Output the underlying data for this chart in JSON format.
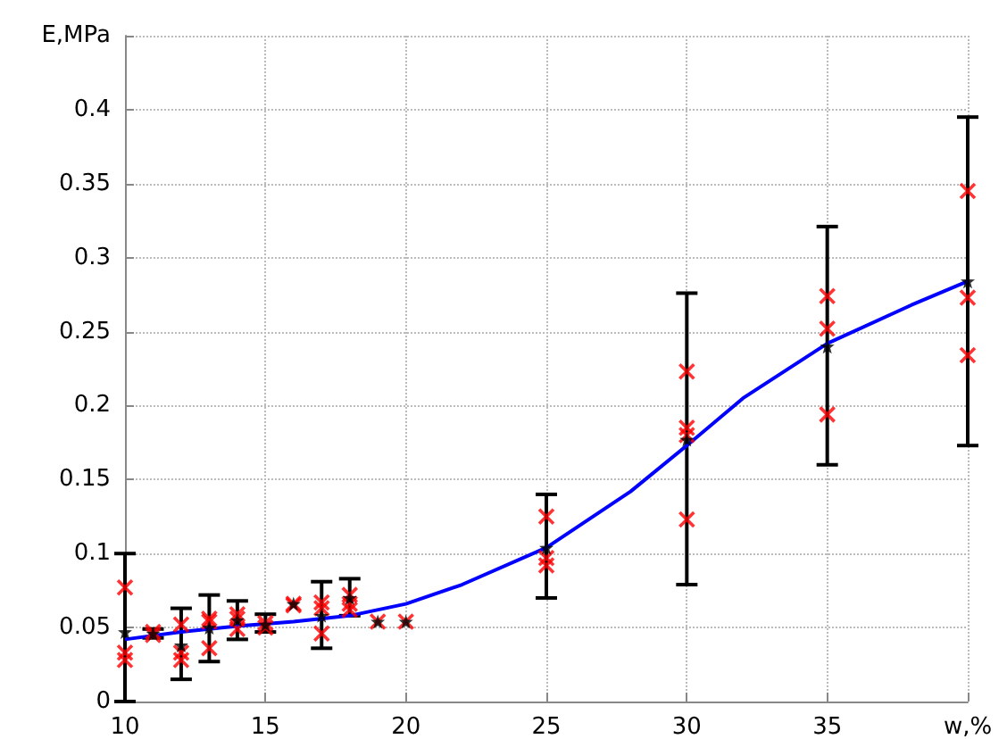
{
  "chart_data": {
    "type": "scatter",
    "xlim": [
      10,
      40
    ],
    "ylim": [
      0,
      0.45
    ],
    "xticks": [
      10,
      15,
      20,
      25,
      30,
      35,
      {
        "value": 40,
        "label": "w,%"
      }
    ],
    "yticks": [
      0,
      0.05,
      0.1,
      0.15,
      0.2,
      0.25,
      0.3,
      0.35,
      0.4,
      {
        "value": 0.45,
        "label": "E,MPa"
      }
    ],
    "grid": true,
    "series": [
      {
        "marker": "cross",
        "color": "#ff0000",
        "x": [
          10,
          10,
          10,
          11,
          11,
          12,
          12,
          12,
          13,
          13,
          13,
          14,
          14,
          14,
          15,
          15,
          16,
          16,
          17,
          17,
          17,
          18,
          18,
          18,
          19,
          20,
          25,
          25,
          25,
          30,
          30,
          30,
          30,
          35,
          35,
          35,
          40,
          40,
          40
        ],
        "values": [
          0.077,
          0.033,
          0.028,
          0.045,
          0.047,
          0.052,
          0.033,
          0.028,
          0.056,
          0.054,
          0.036,
          0.059,
          0.056,
          0.049,
          0.053,
          0.05,
          0.066,
          0.065,
          0.067,
          0.063,
          0.046,
          0.072,
          0.066,
          0.062,
          0.054,
          0.054,
          0.125,
          0.097,
          0.092,
          0.223,
          0.185,
          0.18,
          0.123,
          0.274,
          0.252,
          0.194,
          0.345,
          0.273,
          0.234
        ]
      },
      {
        "type": "line",
        "marker": "none",
        "color": "#0000ff",
        "x": [
          10,
          12,
          14,
          16,
          18,
          20,
          22,
          25,
          28,
          30,
          32,
          35,
          38,
          40
        ],
        "values": [
          0.042,
          0.047,
          0.051,
          0.054,
          0.058,
          0.066,
          0.079,
          0.104,
          0.142,
          0.173,
          0.205,
          0.242,
          0.268,
          0.284
        ]
      },
      {
        "marker": "star",
        "color": "#000000",
        "x": [
          10,
          11,
          12,
          13,
          14,
          15,
          16,
          17,
          18,
          19,
          20,
          25,
          30,
          35,
          40
        ],
        "values": [
          0.047,
          0.046,
          0.038,
          0.05,
          0.055,
          0.052,
          0.066,
          0.058,
          0.07,
          0.054,
          0.054,
          0.104,
          0.177,
          0.24,
          0.284
        ],
        "errors": [
          [
            0,
            0.1
          ],
          [
            0.043,
            0.049
          ],
          [
            0.015,
            0.063
          ],
          [
            0.027,
            0.072
          ],
          [
            0.042,
            0.068
          ],
          [
            0.047,
            0.059
          ],
          null,
          [
            0.036,
            0.081
          ],
          [
            0.058,
            0.083
          ],
          null,
          null,
          [
            0.07,
            0.14
          ],
          [
            0.079,
            0.276
          ],
          [
            0.16,
            0.321
          ],
          [
            0.173,
            0.395
          ]
        ]
      }
    ]
  }
}
